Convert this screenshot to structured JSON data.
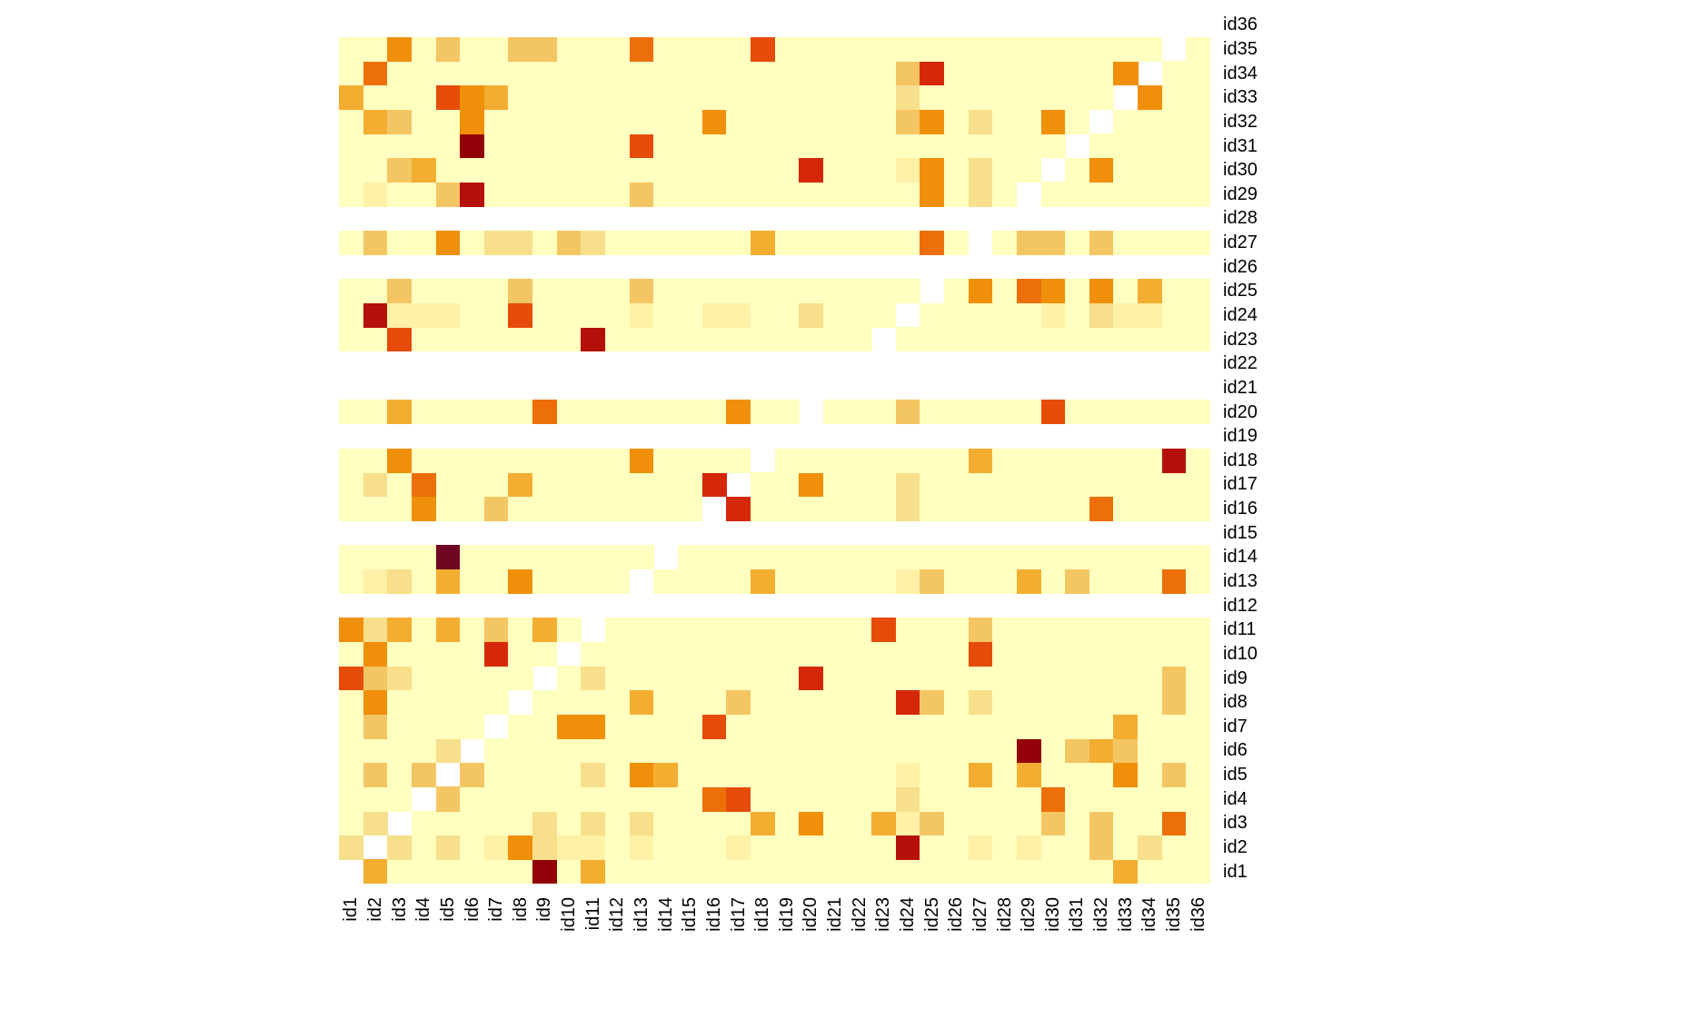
{
  "chart_data": {
    "type": "heatmap",
    "title": "",
    "xlabel": "",
    "ylabel": "",
    "grid": false,
    "legend": "none",
    "x": [
      "id1",
      "id2",
      "id3",
      "id4",
      "id5",
      "id6",
      "id7",
      "id8",
      "id9",
      "id10",
      "id11",
      "id12",
      "id13",
      "id14",
      "id15",
      "id16",
      "id17",
      "id18",
      "id19",
      "id20",
      "id21",
      "id22",
      "id23",
      "id24",
      "id25",
      "id26",
      "id27",
      "id28",
      "id29",
      "id30",
      "id31",
      "id32",
      "id33",
      "id34",
      "id35",
      "id36"
    ],
    "y": [
      "id1",
      "id2",
      "id3",
      "id4",
      "id5",
      "id6",
      "id7",
      "id8",
      "id9",
      "id10",
      "id11",
      "id12",
      "id13",
      "id14",
      "id15",
      "id16",
      "id17",
      "id18",
      "id19",
      "id20",
      "id21",
      "id22",
      "id23",
      "id24",
      "id25",
      "id26",
      "id27",
      "id28",
      "id29",
      "id30",
      "id31",
      "id32",
      "id33",
      "id34",
      "id35",
      "id36"
    ],
    "y_order": "id1 at bottom, id36 at top",
    "value_encoding": "Intensity level per cell: 0 = missing (white), 1 = lowest (pale yellow) ... 12 = highest (dark maroon); rows listed id1..id36, columns id1..id36",
    "color_scale": [
      "#FFFFFF",
      "#FFFFBF",
      "#FFF1A6",
      "#F8DF8B",
      "#F4C663",
      "#F3AE31",
      "#F08F0A",
      "#EC6F09",
      "#E64B0A",
      "#D5280A",
      "#B5100A",
      "#920008",
      "#6E0521"
    ],
    "values": [
      [
        0,
        5,
        1,
        1,
        1,
        1,
        1,
        1,
        11,
        1,
        5,
        1,
        1,
        1,
        1,
        1,
        1,
        1,
        1,
        1,
        1,
        1,
        1,
        1,
        1,
        1,
        1,
        1,
        1,
        1,
        1,
        1,
        5,
        1,
        1,
        1
      ],
      [
        3,
        0,
        3,
        1,
        3,
        1,
        2,
        6,
        3,
        2,
        2,
        1,
        2,
        1,
        1,
        1,
        2,
        1,
        1,
        1,
        1,
        1,
        1,
        10,
        1,
        1,
        2,
        1,
        2,
        1,
        1,
        4,
        1,
        3,
        1,
        1
      ],
      [
        1,
        3,
        0,
        1,
        1,
        1,
        1,
        1,
        3,
        1,
        3,
        1,
        3,
        1,
        1,
        1,
        1,
        5,
        1,
        6,
        1,
        1,
        5,
        2,
        4,
        1,
        1,
        1,
        1,
        4,
        1,
        4,
        1,
        1,
        7,
        1
      ],
      [
        1,
        1,
        1,
        0,
        4,
        1,
        1,
        1,
        1,
        1,
        1,
        1,
        1,
        1,
        1,
        7,
        8,
        1,
        1,
        1,
        1,
        1,
        1,
        3,
        1,
        1,
        1,
        1,
        1,
        7,
        1,
        1,
        1,
        1,
        1,
        1
      ],
      [
        1,
        4,
        1,
        4,
        0,
        4,
        1,
        1,
        1,
        1,
        3,
        1,
        6,
        5,
        1,
        1,
        1,
        1,
        1,
        1,
        1,
        1,
        1,
        2,
        1,
        1,
        5,
        1,
        5,
        1,
        1,
        1,
        6,
        1,
        4,
        1
      ],
      [
        1,
        1,
        1,
        1,
        3,
        0,
        1,
        1,
        1,
        1,
        1,
        1,
        1,
        1,
        1,
        1,
        1,
        1,
        1,
        1,
        1,
        1,
        1,
        1,
        1,
        1,
        1,
        1,
        11,
        1,
        4,
        5,
        4,
        1,
        1,
        1
      ],
      [
        1,
        4,
        1,
        1,
        1,
        1,
        0,
        1,
        1,
        6,
        6,
        1,
        1,
        1,
        1,
        8,
        1,
        1,
        1,
        1,
        1,
        1,
        1,
        1,
        1,
        1,
        1,
        1,
        1,
        1,
        1,
        1,
        5,
        1,
        1,
        1
      ],
      [
        1,
        6,
        1,
        1,
        1,
        1,
        1,
        0,
        1,
        1,
        1,
        1,
        5,
        1,
        1,
        1,
        4,
        1,
        1,
        1,
        1,
        1,
        1,
        9,
        4,
        1,
        3,
        1,
        1,
        1,
        1,
        1,
        1,
        1,
        4,
        1
      ],
      [
        8,
        4,
        3,
        1,
        1,
        1,
        1,
        1,
        0,
        1,
        3,
        1,
        1,
        1,
        1,
        1,
        1,
        1,
        1,
        9,
        1,
        1,
        1,
        1,
        1,
        1,
        1,
        1,
        1,
        1,
        1,
        1,
        1,
        1,
        4,
        1
      ],
      [
        1,
        6,
        1,
        1,
        1,
        1,
        9,
        1,
        1,
        0,
        1,
        1,
        1,
        1,
        1,
        1,
        1,
        1,
        1,
        1,
        1,
        1,
        1,
        1,
        1,
        1,
        8,
        1,
        1,
        1,
        1,
        1,
        1,
        1,
        1,
        1
      ],
      [
        6,
        3,
        5,
        1,
        5,
        1,
        4,
        1,
        5,
        1,
        0,
        1,
        1,
        1,
        1,
        1,
        1,
        1,
        1,
        1,
        1,
        1,
        8,
        1,
        1,
        1,
        4,
        1,
        1,
        1,
        1,
        1,
        1,
        1,
        1,
        1
      ],
      [
        0,
        0,
        0,
        0,
        0,
        0,
        0,
        0,
        0,
        0,
        0,
        0,
        0,
        0,
        0,
        0,
        0,
        0,
        0,
        0,
        0,
        0,
        0,
        0,
        0,
        0,
        0,
        0,
        0,
        0,
        0,
        0,
        0,
        0,
        0,
        0
      ],
      [
        1,
        2,
        3,
        1,
        5,
        1,
        1,
        6,
        1,
        1,
        1,
        1,
        0,
        1,
        1,
        1,
        1,
        5,
        1,
        1,
        1,
        1,
        1,
        2,
        4,
        1,
        1,
        1,
        5,
        1,
        4,
        1,
        1,
        1,
        7,
        1
      ],
      [
        1,
        1,
        1,
        1,
        12,
        1,
        1,
        1,
        1,
        1,
        1,
        1,
        1,
        0,
        1,
        1,
        1,
        1,
        1,
        1,
        1,
        1,
        1,
        1,
        1,
        1,
        1,
        1,
        1,
        1,
        1,
        1,
        1,
        1,
        1,
        1
      ],
      [
        0,
        0,
        0,
        0,
        0,
        0,
        0,
        0,
        0,
        0,
        0,
        0,
        0,
        0,
        0,
        0,
        0,
        0,
        0,
        0,
        0,
        0,
        0,
        0,
        0,
        0,
        0,
        0,
        0,
        0,
        0,
        0,
        0,
        0,
        0,
        0
      ],
      [
        1,
        1,
        1,
        6,
        1,
        1,
        4,
        1,
        1,
        1,
        1,
        1,
        1,
        1,
        1,
        0,
        9,
        1,
        1,
        1,
        1,
        1,
        1,
        3,
        1,
        1,
        1,
        1,
        1,
        1,
        1,
        7,
        1,
        1,
        1,
        1
      ],
      [
        1,
        3,
        1,
        7,
        1,
        1,
        1,
        5,
        1,
        1,
        1,
        1,
        1,
        1,
        1,
        9,
        0,
        1,
        1,
        6,
        1,
        1,
        1,
        3,
        1,
        1,
        1,
        1,
        1,
        1,
        1,
        1,
        1,
        1,
        1,
        1
      ],
      [
        1,
        1,
        6,
        1,
        1,
        1,
        1,
        1,
        1,
        1,
        1,
        1,
        6,
        1,
        1,
        1,
        1,
        0,
        1,
        1,
        1,
        1,
        1,
        1,
        1,
        1,
        5,
        1,
        1,
        1,
        1,
        1,
        1,
        1,
        10,
        1
      ],
      [
        0,
        0,
        0,
        0,
        0,
        0,
        0,
        0,
        0,
        0,
        0,
        0,
        0,
        0,
        0,
        0,
        0,
        0,
        0,
        0,
        0,
        0,
        0,
        0,
        0,
        0,
        0,
        0,
        0,
        0,
        0,
        0,
        0,
        0,
        0,
        0
      ],
      [
        1,
        1,
        5,
        1,
        1,
        1,
        1,
        1,
        7,
        1,
        1,
        1,
        1,
        1,
        1,
        1,
        6,
        1,
        1,
        0,
        1,
        1,
        1,
        4,
        1,
        1,
        1,
        1,
        1,
        8,
        1,
        1,
        1,
        1,
        1,
        1
      ],
      [
        0,
        0,
        0,
        0,
        0,
        0,
        0,
        0,
        0,
        0,
        0,
        0,
        0,
        0,
        0,
        0,
        0,
        0,
        0,
        0,
        0,
        0,
        0,
        0,
        0,
        0,
        0,
        0,
        0,
        0,
        0,
        0,
        0,
        0,
        0,
        0
      ],
      [
        0,
        0,
        0,
        0,
        0,
        0,
        0,
        0,
        0,
        0,
        0,
        0,
        0,
        0,
        0,
        0,
        0,
        0,
        0,
        0,
        0,
        0,
        0,
        0,
        0,
        0,
        0,
        0,
        0,
        0,
        0,
        0,
        0,
        0,
        0,
        0
      ],
      [
        1,
        1,
        8,
        1,
        1,
        1,
        1,
        1,
        1,
        1,
        10,
        1,
        1,
        1,
        1,
        1,
        1,
        1,
        1,
        1,
        1,
        1,
        0,
        1,
        1,
        1,
        1,
        1,
        1,
        1,
        1,
        1,
        1,
        1,
        1,
        1
      ],
      [
        1,
        10,
        2,
        2,
        2,
        1,
        1,
        8,
        1,
        1,
        1,
        1,
        2,
        1,
        1,
        2,
        2,
        1,
        1,
        3,
        1,
        1,
        1,
        0,
        1,
        1,
        1,
        1,
        1,
        2,
        1,
        3,
        2,
        2,
        1,
        1
      ],
      [
        1,
        1,
        4,
        1,
        1,
        1,
        1,
        4,
        1,
        1,
        1,
        1,
        4,
        1,
        1,
        1,
        1,
        1,
        1,
        1,
        1,
        1,
        1,
        1,
        0,
        1,
        6,
        1,
        7,
        6,
        1,
        6,
        1,
        5,
        1,
        1
      ],
      [
        0,
        0,
        0,
        0,
        0,
        0,
        0,
        0,
        0,
        0,
        0,
        0,
        0,
        0,
        0,
        0,
        0,
        0,
        0,
        0,
        0,
        0,
        0,
        0,
        0,
        0,
        0,
        0,
        0,
        0,
        0,
        0,
        0,
        0,
        0,
        0
      ],
      [
        1,
        4,
        1,
        1,
        6,
        1,
        3,
        3,
        1,
        4,
        3,
        1,
        1,
        1,
        1,
        1,
        1,
        5,
        1,
        1,
        1,
        1,
        1,
        1,
        7,
        1,
        0,
        1,
        4,
        4,
        1,
        4,
        1,
        1,
        1,
        1
      ],
      [
        0,
        0,
        0,
        0,
        0,
        0,
        0,
        0,
        0,
        0,
        0,
        0,
        0,
        0,
        0,
        0,
        0,
        0,
        0,
        0,
        0,
        0,
        0,
        0,
        0,
        0,
        0,
        0,
        0,
        0,
        0,
        0,
        0,
        0,
        0,
        0
      ],
      [
        1,
        2,
        1,
        1,
        4,
        10,
        1,
        1,
        1,
        1,
        1,
        1,
        4,
        1,
        1,
        1,
        1,
        1,
        1,
        1,
        1,
        1,
        1,
        1,
        6,
        1,
        3,
        1,
        0,
        1,
        1,
        1,
        1,
        1,
        1,
        1
      ],
      [
        1,
        1,
        4,
        5,
        1,
        1,
        1,
        1,
        1,
        1,
        1,
        1,
        1,
        1,
        1,
        1,
        1,
        1,
        1,
        9,
        1,
        1,
        1,
        2,
        6,
        1,
        3,
        1,
        1,
        0,
        1,
        6,
        1,
        1,
        1,
        1
      ],
      [
        1,
        1,
        1,
        1,
        1,
        11,
        1,
        1,
        1,
        1,
        1,
        1,
        8,
        1,
        1,
        1,
        1,
        1,
        1,
        1,
        1,
        1,
        1,
        1,
        1,
        1,
        1,
        1,
        1,
        1,
        0,
        1,
        1,
        1,
        1,
        1
      ],
      [
        1,
        5,
        4,
        1,
        1,
        6,
        1,
        1,
        1,
        1,
        1,
        1,
        1,
        1,
        1,
        6,
        1,
        1,
        1,
        1,
        1,
        1,
        1,
        4,
        6,
        1,
        3,
        1,
        1,
        6,
        1,
        0,
        1,
        1,
        1,
        1
      ],
      [
        5,
        1,
        1,
        1,
        8,
        6,
        5,
        1,
        1,
        1,
        1,
        1,
        1,
        1,
        1,
        1,
        1,
        1,
        1,
        1,
        1,
        1,
        1,
        3,
        1,
        1,
        1,
        1,
        1,
        1,
        1,
        1,
        0,
        6,
        1,
        1
      ],
      [
        1,
        7,
        1,
        1,
        1,
        1,
        1,
        1,
        1,
        1,
        1,
        1,
        1,
        1,
        1,
        1,
        1,
        1,
        1,
        1,
        1,
        1,
        1,
        4,
        9,
        1,
        1,
        1,
        1,
        1,
        1,
        1,
        6,
        0,
        1,
        1
      ],
      [
        1,
        1,
        6,
        1,
        4,
        1,
        1,
        4,
        4,
        1,
        1,
        1,
        7,
        1,
        1,
        1,
        1,
        8,
        1,
        1,
        1,
        1,
        1,
        1,
        1,
        1,
        1,
        1,
        1,
        1,
        1,
        1,
        1,
        1,
        0,
        1
      ],
      [
        0,
        0,
        0,
        0,
        0,
        0,
        0,
        0,
        0,
        0,
        0,
        0,
        0,
        0,
        0,
        0,
        0,
        0,
        0,
        0,
        0,
        0,
        0,
        0,
        0,
        0,
        0,
        0,
        0,
        0,
        0,
        0,
        0,
        0,
        0,
        0
      ]
    ]
  }
}
